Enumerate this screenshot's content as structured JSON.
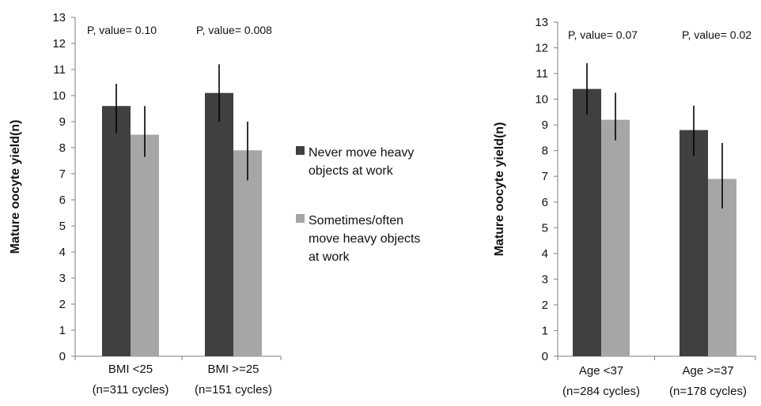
{
  "colors": {
    "never": "#404040",
    "sometimes": "#a6a6a6",
    "axis": "#7f7f7f",
    "errorbar": "#000000"
  },
  "legend": [
    {
      "key": "never",
      "lines": [
        "Never move heavy",
        "objects at work"
      ]
    },
    {
      "key": "sometimes",
      "lines": [
        "Sometimes/often",
        "move heavy objects",
        "at work"
      ]
    }
  ],
  "chart_data": [
    {
      "type": "bar",
      "ylabel": "Mature oocyte yield(n)",
      "ylim": [
        0,
        13
      ],
      "yticks": [
        0,
        1,
        2,
        3,
        4,
        5,
        6,
        7,
        8,
        9,
        10,
        11,
        12,
        13
      ],
      "categories": [
        {
          "line1": "BMI <25",
          "line2": "(n=311 cycles)"
        },
        {
          "line1": "BMI >=25",
          "line2": "(n=151 cycles)"
        }
      ],
      "series": [
        {
          "key": "never",
          "values": [
            9.6,
            10.1
          ],
          "err_low": [
            8.55,
            9.0
          ],
          "err_high": [
            10.45,
            11.2
          ]
        },
        {
          "key": "sometimes",
          "values": [
            8.5,
            7.9
          ],
          "err_low": [
            7.65,
            6.75
          ],
          "err_high": [
            9.6,
            9.0
          ]
        }
      ],
      "annotations": [
        "P, value= 0.10",
        "P, value= 0.008"
      ]
    },
    {
      "type": "bar",
      "ylabel": "Mature oocyte yield(n)",
      "ylim": [
        0,
        13
      ],
      "yticks": [
        0,
        1,
        2,
        3,
        4,
        5,
        6,
        7,
        8,
        9,
        10,
        11,
        12,
        13
      ],
      "categories": [
        {
          "line1": "Age <37",
          "line2": "(n=284 cycles)"
        },
        {
          "line1": "Age >=37",
          "line2": "(n=178 cycles)"
        }
      ],
      "series": [
        {
          "key": "never",
          "values": [
            10.4,
            8.8
          ],
          "err_low": [
            9.4,
            7.8
          ],
          "err_high": [
            11.4,
            9.75
          ]
        },
        {
          "key": "sometimes",
          "values": [
            9.2,
            6.9
          ],
          "err_low": [
            8.4,
            5.75
          ],
          "err_high": [
            10.25,
            8.3
          ]
        }
      ],
      "annotations": [
        "P, value= 0.07",
        "P, value= 0.02"
      ]
    }
  ]
}
